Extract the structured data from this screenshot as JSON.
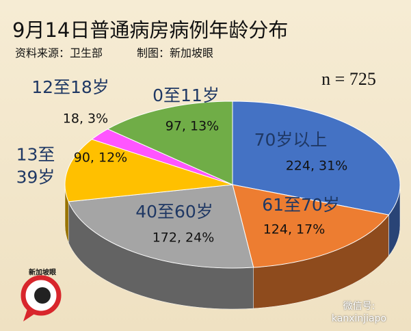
{
  "chart_data": {
    "type": "pie",
    "title": "9月14日普通病房病例年龄分布",
    "source": "资料来源：卫生部",
    "credit": "制图：新加坡眼",
    "annotation": "n = 725",
    "categories": [
      "70岁以上",
      "61至70岁",
      "40至60岁",
      "13至\n39岁",
      "12至18岁",
      "0至11岁"
    ],
    "values": [
      224,
      124,
      172,
      90,
      18,
      97
    ],
    "value_labels": [
      "224, 31%",
      "124, 17%",
      "172, 24%",
      "90, 12%",
      "18, 3%",
      "97, 13%"
    ],
    "colors": [
      "#4472c4",
      "#ed7d31",
      "#a5a5a5",
      "#ffc000",
      "#ff55ff",
      "#70ad47"
    ]
  },
  "watermark": {
    "logo": "新加坡眼",
    "account": "微信号: kanxinjiapo"
  }
}
